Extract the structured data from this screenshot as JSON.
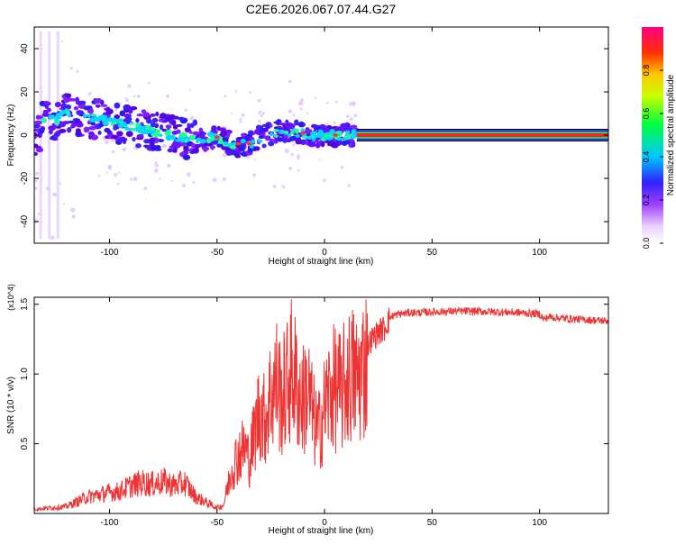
{
  "title": "C2E6.2026.067.07.44.G27",
  "chart_data": [
    {
      "type": "heatmap",
      "xlabel": "Height of straight line (km)",
      "ylabel": "Frequency (Hz)",
      "xlim": [
        -135,
        132
      ],
      "ylim": [
        -50,
        50
      ],
      "x_ticks": [
        -100,
        -50,
        0,
        50,
        100
      ],
      "y_ticks": [
        -40,
        -20,
        0,
        20,
        40
      ],
      "colorbar": {
        "label": "Normalized spectral amplitude",
        "range": [
          0,
          1
        ],
        "ticks": [
          0.0,
          0.2,
          0.4,
          0.6,
          0.8
        ]
      },
      "ridge": {
        "x": [
          -132,
          -125,
          -120,
          -110,
          -100,
          -90,
          -80,
          -70,
          -60,
          -50,
          -45,
          -40,
          -35,
          -30,
          -25,
          -20,
          -15,
          -10,
          -5,
          0,
          5,
          10,
          15,
          132
        ],
        "y": [
          6,
          7,
          10,
          8,
          6,
          4,
          2,
          0,
          -3,
          -1,
          -3,
          -5,
          -4,
          -1,
          1,
          2,
          1,
          1,
          0,
          0,
          0,
          0,
          0,
          0
        ]
      }
    },
    {
      "type": "line",
      "xlabel": "Height of straight line (km)",
      "ylabel": "SNR (10 * v/v)",
      "y_multiplier": "(x10^4)",
      "xlim": [
        -135,
        132
      ],
      "ylim": [
        0,
        15500
      ],
      "x_ticks": [
        -100,
        -50,
        0,
        50,
        100
      ],
      "y_ticks": [
        5000,
        10000,
        15000
      ],
      "y_tick_labels": [
        "0.5",
        "1.0",
        "1.5"
      ],
      "series": [
        {
          "color": "#ee3333",
          "x": [
            -135,
            -120,
            -110,
            -100,
            -95,
            -90,
            -85,
            -80,
            -75,
            -70,
            -65,
            -60,
            -55,
            -50,
            -47,
            -45,
            -43,
            -40,
            -37,
            -35,
            -32,
            -30,
            -28,
            -25,
            -22,
            -20,
            -18,
            -15,
            -12,
            -10,
            -8,
            -5,
            -3,
            0,
            2,
            5,
            8,
            10,
            13,
            15,
            18,
            20,
            22,
            25,
            28,
            30,
            32,
            35,
            40,
            45,
            50,
            60,
            70,
            80,
            90,
            100,
            102,
            104,
            110,
            120,
            132
          ],
          "y": [
            300,
            500,
            1200,
            1500,
            1600,
            2000,
            2200,
            2100,
            2300,
            2000,
            2200,
            1200,
            800,
            400,
            600,
            2000,
            3500,
            4500,
            5000,
            4000,
            6500,
            8000,
            7000,
            9000,
            10000,
            8500,
            9500,
            11000,
            9000,
            8500,
            9500,
            7000,
            6000,
            8000,
            9000,
            9500,
            9000,
            10000,
            10500,
            10000,
            11000,
            12000,
            12500,
            13000,
            13300,
            14000,
            14200,
            14300,
            14400,
            14400,
            14450,
            14500,
            14500,
            14450,
            14400,
            14300,
            13900,
            14100,
            14000,
            13900,
            13800
          ]
        }
      ]
    }
  ]
}
